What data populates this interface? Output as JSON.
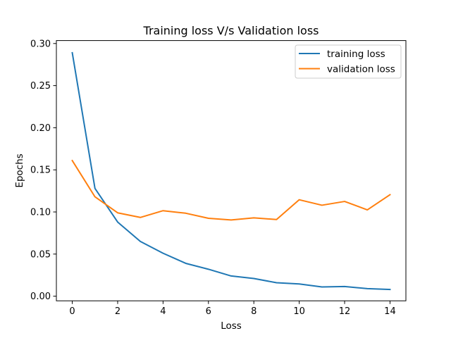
{
  "chart_data": {
    "type": "line",
    "title": "Training loss V/s Validation loss",
    "xlabel": "Loss",
    "ylabel": "Epochs",
    "xlim": [
      -0.7,
      14.7
    ],
    "ylim": [
      -0.0055,
      0.3035
    ],
    "x_ticks": [
      0,
      2,
      4,
      6,
      8,
      10,
      12,
      14
    ],
    "x_tick_labels": [
      "0",
      "2",
      "4",
      "6",
      "8",
      "10",
      "12",
      "14"
    ],
    "y_ticks": [
      0.0,
      0.05,
      0.1,
      0.15,
      0.2,
      0.25,
      0.3
    ],
    "y_tick_labels": [
      "0.00",
      "0.05",
      "0.10",
      "0.15",
      "0.20",
      "0.25",
      "0.30"
    ],
    "grid": false,
    "legend_position": "top-right",
    "x": [
      0,
      1,
      2,
      3,
      4,
      5,
      6,
      7,
      8,
      9,
      10,
      11,
      12,
      13,
      14
    ],
    "series": [
      {
        "name": "training loss",
        "color": "#1f77b4",
        "values": [
          0.289,
          0.128,
          0.088,
          0.065,
          0.051,
          0.039,
          0.032,
          0.024,
          0.021,
          0.016,
          0.0145,
          0.011,
          0.0115,
          0.009,
          0.008
        ]
      },
      {
        "name": "validation loss",
        "color": "#ff7f0e",
        "values": [
          0.161,
          0.118,
          0.099,
          0.0935,
          0.1015,
          0.0985,
          0.0925,
          0.0905,
          0.093,
          0.091,
          0.1145,
          0.108,
          0.1125,
          0.1025,
          0.1205
        ]
      }
    ]
  }
}
